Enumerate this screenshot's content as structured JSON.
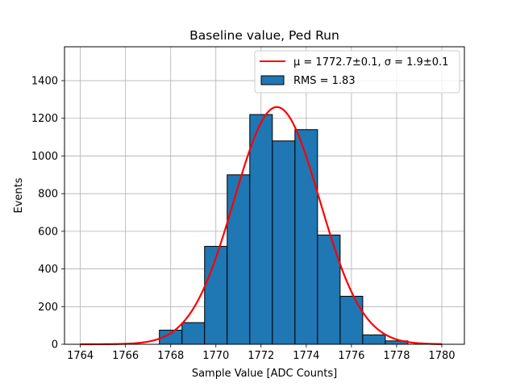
{
  "chart_data": {
    "type": "bar",
    "title": "Baseline value, Ped Run",
    "xlabel": "Sample Value [ADC Counts]",
    "ylabel": "Events",
    "xlim": [
      1763.3,
      1781.0
    ],
    "ylim": [
      0,
      1580
    ],
    "xticks": [
      1764,
      1766,
      1768,
      1770,
      1772,
      1774,
      1776,
      1778,
      1780
    ],
    "yticks": [
      0,
      200,
      400,
      600,
      800,
      1000,
      1200,
      1400
    ],
    "grid": true,
    "legend_position": "top-right",
    "histogram": {
      "name": "RMS = 1.83",
      "color": "#1f77b4",
      "edge_color": "#000000",
      "bins": [
        {
          "x0": 1767.5,
          "x1": 1768.5,
          "count": 75
        },
        {
          "x0": 1768.5,
          "x1": 1769.5,
          "count": 115
        },
        {
          "x0": 1769.5,
          "x1": 1770.5,
          "count": 520
        },
        {
          "x0": 1770.5,
          "x1": 1771.5,
          "count": 900
        },
        {
          "x0": 1771.5,
          "x1": 1772.5,
          "count": 1220
        },
        {
          "x0": 1772.5,
          "x1": 1773.5,
          "count": 1080
        },
        {
          "x0": 1773.5,
          "x1": 1774.5,
          "count": 1140
        },
        {
          "x0": 1774.5,
          "x1": 1775.5,
          "count": 580
        },
        {
          "x0": 1775.5,
          "x1": 1776.5,
          "count": 255
        },
        {
          "x0": 1776.5,
          "x1": 1777.5,
          "count": 50
        },
        {
          "x0": 1777.5,
          "x1": 1778.5,
          "count": 18
        }
      ]
    },
    "fit": {
      "name": "μ = 1772.7±0.1, σ = 1.9±0.1",
      "type": "gaussian",
      "mu": 1772.7,
      "sigma": 1.9,
      "amplitude": 1260,
      "x_range": [
        1764,
        1780
      ],
      "color": "#ff0000"
    }
  }
}
